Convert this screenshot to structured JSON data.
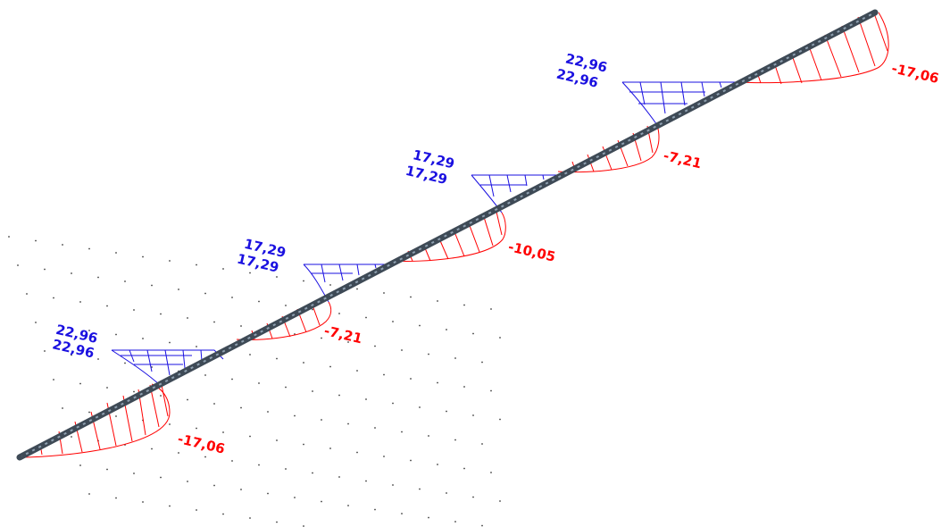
{
  "view": {
    "background_color": "#ffffff",
    "grid_dot_color": "#404040",
    "beam_color": "#3e4a56",
    "beam_hatch_color": "#8fa0b0"
  },
  "diagram": {
    "positive_color": "#1a10e0",
    "negative_color": "#ff0000",
    "supports": [
      {
        "value_top": "22,96",
        "value_bottom": "22,96"
      },
      {
        "value_top": "17,29",
        "value_bottom": "17,29"
      },
      {
        "value_top": "17,29",
        "value_bottom": "17,29"
      },
      {
        "value_top": "22,96",
        "value_bottom": "22,96"
      }
    ],
    "spans": [
      {
        "value": "-17,06"
      },
      {
        "value": "-7,21"
      },
      {
        "value": "-10,05"
      },
      {
        "value": "-7,21"
      },
      {
        "value": "-17,06"
      }
    ]
  }
}
